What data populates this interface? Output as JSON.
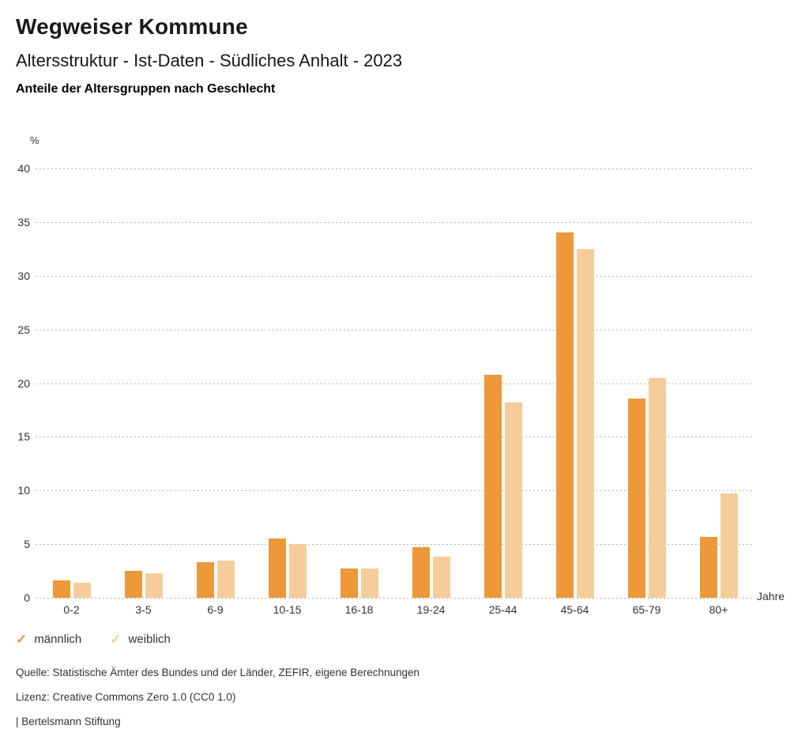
{
  "header": {
    "title": "Wegweiser Kommune",
    "subtitle": "Altersstruktur - Ist-Daten - Südliches Anhalt - 2023",
    "chart_heading": "Anteile der Altersgruppen nach Geschlecht"
  },
  "chart_data": {
    "type": "bar",
    "title": "Anteile der Altersgruppen nach Geschlecht",
    "categories": [
      "0-2",
      "3-5",
      "6-9",
      "10-15",
      "16-18",
      "19-24",
      "25-44",
      "45-64",
      "65-79",
      "80+"
    ],
    "series": [
      {
        "name": "männlich",
        "color": "#ED9839",
        "values": [
          1.6,
          2.5,
          3.3,
          5.5,
          2.7,
          4.7,
          20.8,
          34.0,
          18.6,
          5.7
        ]
      },
      {
        "name": "weiblich",
        "color": "#F6CD9A",
        "values": [
          1.4,
          2.3,
          3.5,
          5.0,
          2.7,
          3.8,
          18.2,
          32.5,
          20.5,
          9.7
        ]
      }
    ],
    "ylabel": "%",
    "xlabel": "Jahre",
    "ylim": [
      0,
      40
    ],
    "ytick_step": 5,
    "grid": "horizontal-dotted",
    "legend_position": "bottom-left"
  },
  "legend": {
    "check_icon": "✓",
    "items": [
      {
        "label": "männlich",
        "color": "#ED9839"
      },
      {
        "label": "weiblich",
        "color": "#F6CD9A"
      }
    ]
  },
  "footer": {
    "source": "Quelle: Statistische Ämter des Bundes und der Länder, ZEFIR, eigene Berechnungen",
    "license": "Lizenz: Creative Commons Zero 1.0 (CC0 1.0)",
    "attribution": "| Bertelsmann Stiftung"
  }
}
